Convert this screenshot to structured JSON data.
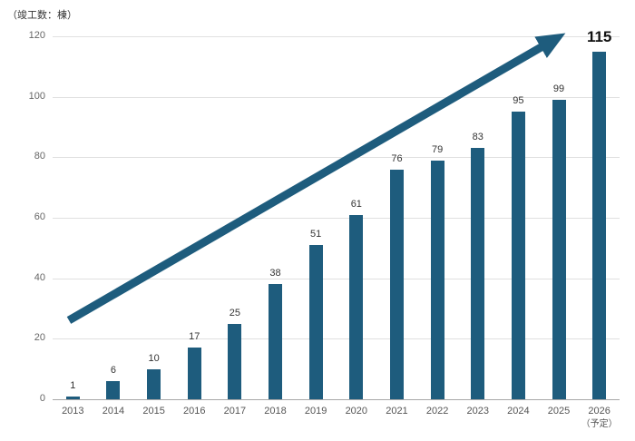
{
  "chart": {
    "unit_label": "（竣工数：棟）"
  },
  "chart_data": {
    "type": "bar",
    "title": "",
    "unit_label": "（竣工数：棟）",
    "categories": [
      "2013",
      "2014",
      "2015",
      "2016",
      "2017",
      "2018",
      "2019",
      "2020",
      "2021",
      "2022",
      "2023",
      "2024",
      "2025",
      "2026"
    ],
    "category_notes": [
      "",
      "",
      "",
      "",
      "",
      "",
      "",
      "",
      "",
      "",
      "",
      "",
      "",
      "（予定）"
    ],
    "values": [
      1,
      6,
      10,
      17,
      25,
      38,
      51,
      61,
      76,
      79,
      83,
      95,
      99,
      115
    ],
    "xlabel": "",
    "ylabel": "（竣工数：棟）",
    "ylim": [
      0,
      120
    ],
    "yticks": [
      0,
      20,
      40,
      60,
      80,
      100,
      120
    ],
    "grid": true,
    "legend": "none",
    "highlight_last": true,
    "bar_color": "#1e5c7d",
    "arrow_color": "#1e5c7d",
    "annotations": [
      {
        "type": "trend-arrow",
        "direction": "up-right",
        "meaning": "steady growth from 2013 to 2026"
      }
    ]
  }
}
